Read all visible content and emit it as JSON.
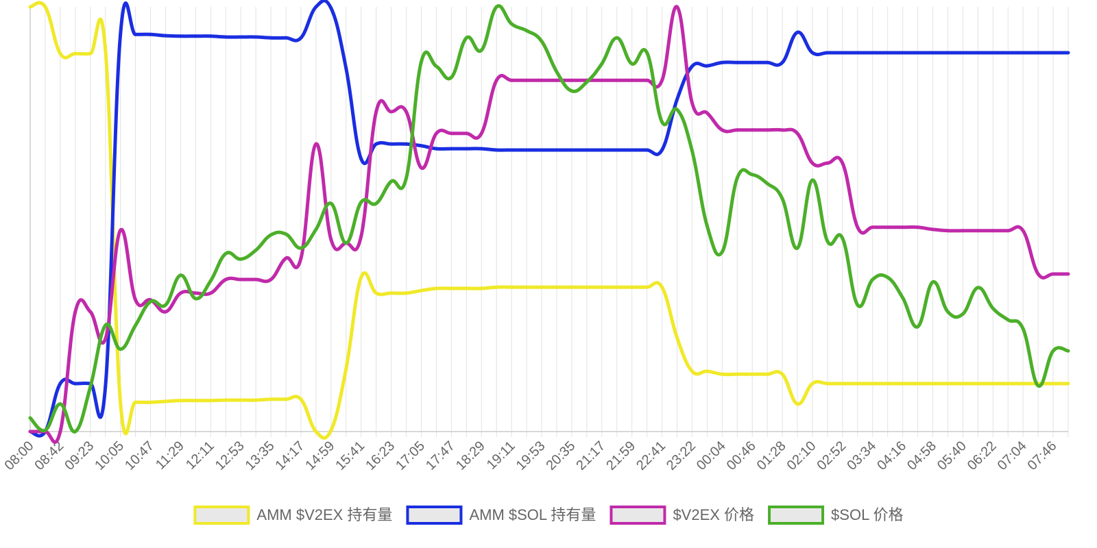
{
  "chart_data": {
    "type": "line",
    "categories": [
      "08:00",
      null,
      "08:42",
      null,
      "09:23",
      null,
      "10:05",
      null,
      "10:47",
      null,
      "11:29",
      null,
      "12:11",
      null,
      "12:53",
      null,
      "13:35",
      null,
      "14:17",
      null,
      "14:59",
      null,
      "15:41",
      null,
      "16:23",
      null,
      "17:05",
      null,
      "17:47",
      null,
      "18:29",
      null,
      "19:11",
      null,
      "19:53",
      null,
      "20:35",
      null,
      "21:17",
      null,
      "21:59",
      null,
      "22:41",
      null,
      "23:22",
      null,
      "00:04",
      null,
      "00:46",
      null,
      "01:28",
      null,
      "02:10",
      null,
      "02:52",
      null,
      "03:34",
      null,
      "04:16",
      null,
      "04:58",
      null,
      "05:40",
      null,
      "06:22",
      null,
      "07:04",
      null,
      "07:46",
      null
    ],
    "ylim": [
      0,
      100
    ],
    "grid": true,
    "legend": "bottom",
    "series": [
      {
        "name": "AMM $V2EX 持有量",
        "color": "#f0e92a",
        "values": [
          100,
          100,
          89,
          89,
          89,
          90,
          6.9,
          6.9,
          6.9,
          7.1,
          7.3,
          7.3,
          7.3,
          7.4,
          7.4,
          7.4,
          7.6,
          7.6,
          7.6,
          0,
          0.3,
          14.8,
          36.3,
          32.6,
          32.6,
          32.6,
          33.2,
          33.7,
          33.7,
          33.7,
          33.7,
          34,
          34,
          34,
          34,
          34,
          34,
          34,
          34,
          34,
          34,
          34,
          34,
          22.1,
          14.2,
          14.2,
          13.5,
          13.5,
          13.5,
          13.5,
          13.5,
          6.5,
          11.3,
          11.3,
          11.3,
          11.3,
          11.3,
          11.3,
          11.3,
          11.3,
          11.3,
          11.3,
          11.3,
          11.3,
          11.3,
          11.3,
          11.3,
          11.3,
          11.3,
          11.3
        ]
      },
      {
        "name": "AMM $SOL 持有量",
        "color": "#1a2ee0",
        "values": [
          0,
          0,
          11.3,
          11.3,
          11.3,
          10.5,
          93.5,
          93.5,
          93.5,
          93.2,
          93.1,
          93.1,
          93.1,
          92.9,
          92.9,
          92.9,
          92.7,
          92.7,
          92.7,
          100,
          99.7,
          85.5,
          64.2,
          67.7,
          67.7,
          67.7,
          67.3,
          66.6,
          66.6,
          66.6,
          66.6,
          66.3,
          66.3,
          66.3,
          66.3,
          66.3,
          66.3,
          66.3,
          66.3,
          66.3,
          66.3,
          66.3,
          66.3,
          78.2,
          86,
          86.1,
          86.9,
          86.9,
          86.9,
          86.9,
          86.9,
          94,
          89.2,
          89.2,
          89.2,
          89.2,
          89.2,
          89.2,
          89.2,
          89.2,
          89.2,
          89.2,
          89.2,
          89.2,
          89.2,
          89.2,
          89.2,
          89.2,
          89.2,
          89.2
        ]
      },
      {
        "name": "$V2EX 价格",
        "color": "#c02aaa",
        "values": [
          0,
          0,
          0,
          28.2,
          28.2,
          21.8,
          47.4,
          31,
          31,
          28.2,
          32.6,
          32.6,
          32.6,
          35.8,
          35.8,
          35.8,
          35.8,
          40.8,
          40.8,
          67.7,
          45.2,
          44.4,
          46,
          75.3,
          75.3,
          75.3,
          62.1,
          70.2,
          70.2,
          70.2,
          70.2,
          82.7,
          82.7,
          82.7,
          82.7,
          82.7,
          82.7,
          82.7,
          82.7,
          82.7,
          82.7,
          82.7,
          82.7,
          100,
          77.4,
          75,
          71,
          71,
          71,
          71,
          71,
          70.2,
          63.2,
          63.2,
          63.2,
          48.1,
          48.1,
          48.1,
          48.1,
          48.1,
          47.6,
          47.3,
          47.3,
          47.3,
          47.3,
          47.3,
          47.3,
          37.1,
          37.1,
          37.1
        ]
      },
      {
        "name": "$SOL 价格",
        "color": "#4caf2a",
        "values": [
          3.2,
          0.3,
          6.5,
          0,
          10.5,
          25,
          19.4,
          25,
          30.6,
          29.8,
          36.8,
          31.3,
          35.5,
          41.9,
          40.6,
          42.7,
          46.3,
          46.5,
          43.2,
          47.6,
          53.7,
          44.4,
          54,
          53.7,
          58.9,
          59.7,
          87.1,
          86,
          83.4,
          92.7,
          89.8,
          100,
          96,
          94.4,
          91.9,
          84.7,
          80.2,
          82.3,
          86.6,
          92.7,
          86.6,
          89.2,
          72.9,
          75.8,
          66.1,
          48.4,
          42.3,
          59.7,
          60.5,
          58.4,
          54.8,
          43.2,
          59.2,
          44.8,
          45.5,
          29.8,
          35.8,
          36.3,
          31.5,
          24.7,
          35.2,
          28.2,
          27.7,
          33.9,
          29,
          26.3,
          24.2,
          10.8,
          19,
          19
        ]
      }
    ]
  }
}
